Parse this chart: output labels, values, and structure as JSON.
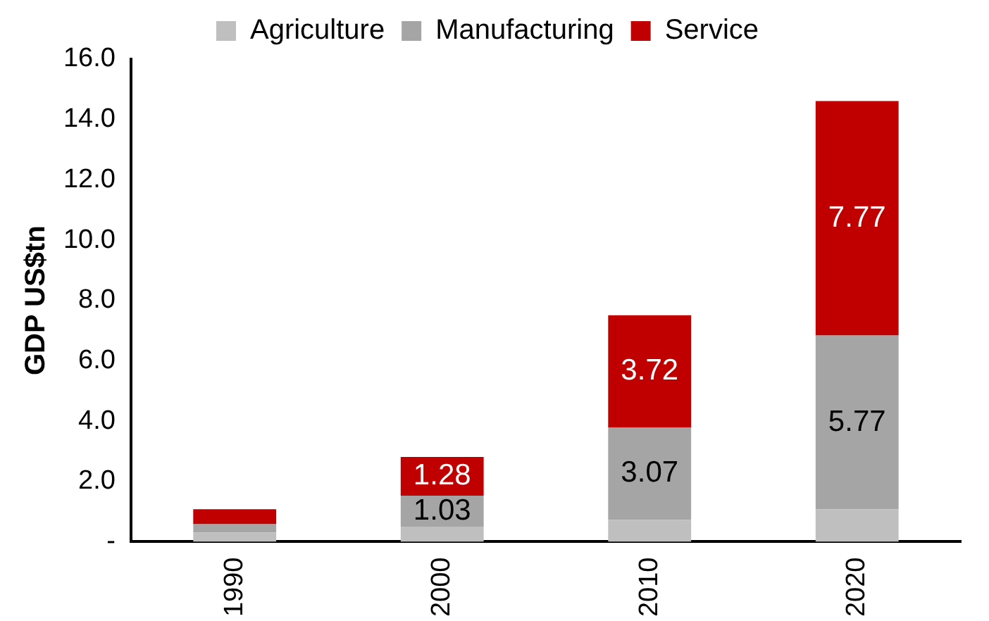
{
  "chart_data": {
    "type": "bar",
    "stacked": true,
    "ylabel": "GDP US$tn",
    "categories": [
      "1990",
      "2000",
      "2010",
      "2020"
    ],
    "series": [
      {
        "name": "Agriculture",
        "color": "#bfbfbf",
        "values": [
          0.3,
          0.5,
          0.72,
          1.07
        ],
        "value_labels": [
          null,
          null,
          null,
          null
        ]
      },
      {
        "name": "Manufacturing",
        "color": "#a5a5a5",
        "values": [
          0.28,
          1.03,
          3.07,
          5.77
        ],
        "value_labels": [
          null,
          "1.03",
          "3.07",
          "5.77"
        ]
      },
      {
        "name": "Service",
        "color": "#c00000",
        "values": [
          0.5,
          1.28,
          3.72,
          7.77
        ],
        "value_labels": [
          null,
          "1.28",
          "3.72",
          "7.77"
        ]
      }
    ],
    "ylim": [
      0,
      16
    ],
    "yticks": [
      {
        "value": 0,
        "label": "-"
      },
      {
        "value": 2,
        "label": "2.0"
      },
      {
        "value": 4,
        "label": "4.0"
      },
      {
        "value": 6,
        "label": "6.0"
      },
      {
        "value": 8,
        "label": "8.0"
      },
      {
        "value": 10,
        "label": "10.0"
      },
      {
        "value": 12,
        "label": "12.0"
      },
      {
        "value": 14,
        "label": "14.0"
      },
      {
        "value": 16,
        "label": "16.0"
      }
    ],
    "grid": false,
    "legend": "top"
  }
}
